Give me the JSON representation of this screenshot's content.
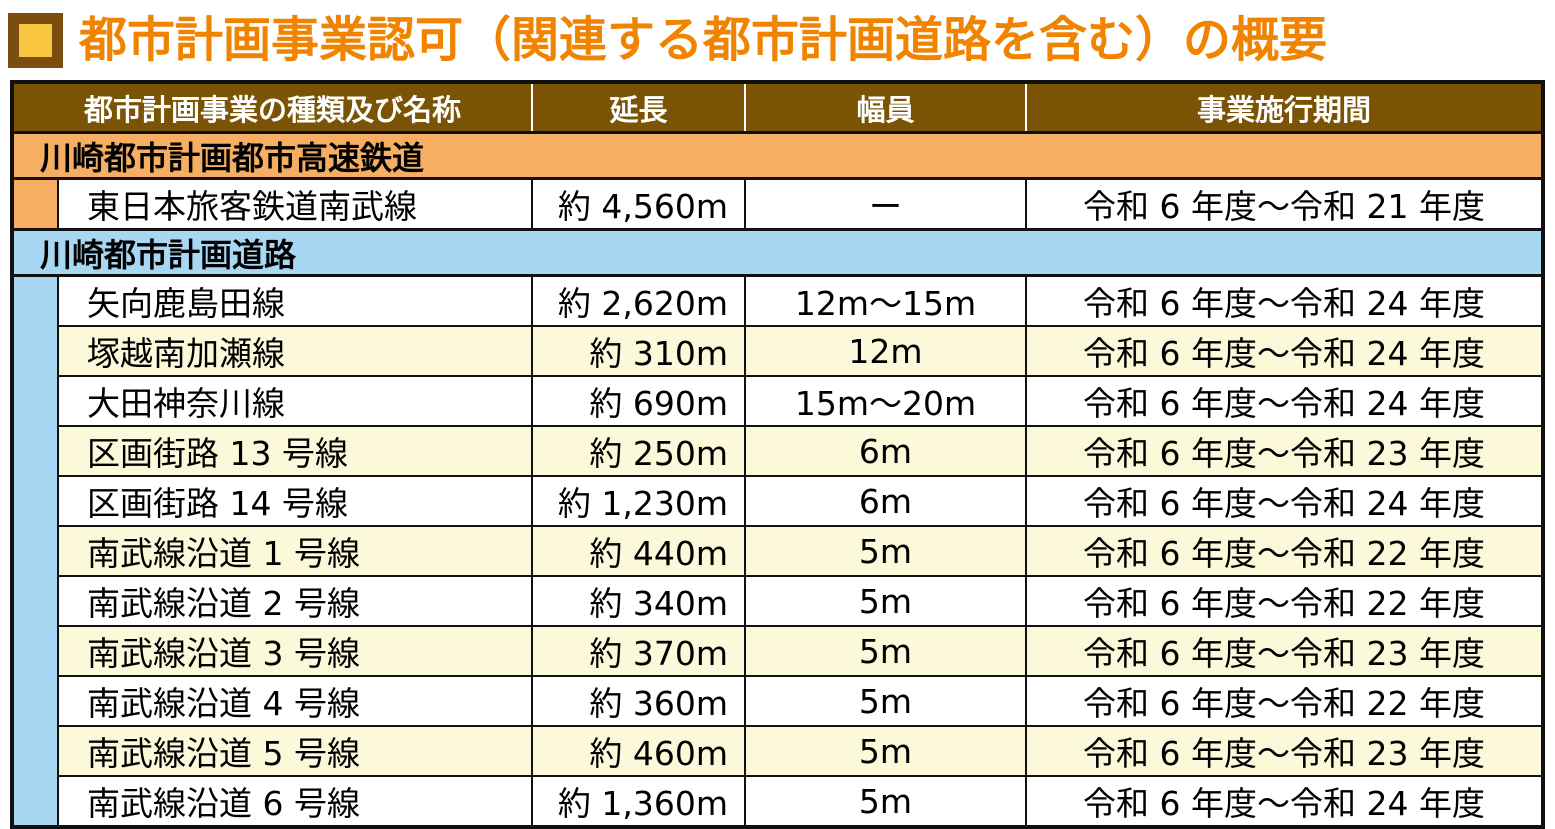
{
  "title": "都市計画事業認可（関連する都市計画道路を含む）の概要",
  "colors": {
    "title_text": "#F08300",
    "bullet_fill": "#F8C63F",
    "bullet_border": "#7B4D0E",
    "header_bg": "#7B5304",
    "header_text": "#FFFFFF",
    "rail_section_bg": "#F5AE62",
    "road_section_bg": "#A7D7F3",
    "row_alt_bg": "#FCF9DA",
    "grid_line": "#111111"
  },
  "table": {
    "columns": [
      {
        "label": "都市計画事業の種類及び名称"
      },
      {
        "label": "延長"
      },
      {
        "label": "幅員"
      },
      {
        "label": "事業施行期間"
      }
    ],
    "sections": [
      {
        "name": "川崎都市計画都市高速鉄道",
        "color": "#F5AE62",
        "rows": [
          {
            "name": "東日本旅客鉄道南武線",
            "length": "約 4,560m",
            "width": "ー",
            "period": "令和 6 年度～令和 21 年度"
          }
        ]
      },
      {
        "name": "川崎都市計画道路",
        "color": "#A7D7F3",
        "rows": [
          {
            "name": "矢向鹿島田線",
            "length": "約 2,620m",
            "width": "12m～15m",
            "period": "令和 6 年度～令和 24 年度"
          },
          {
            "name": "塚越南加瀬線",
            "length": "約 310m",
            "width": "12m",
            "period": "令和 6 年度～令和 24 年度"
          },
          {
            "name": "大田神奈川線",
            "length": "約 690m",
            "width": "15m～20m",
            "period": "令和 6 年度～令和 24 年度"
          },
          {
            "name": "区画街路 13 号線",
            "length": "約 250m",
            "width": "6m",
            "period": "令和 6 年度～令和 23 年度"
          },
          {
            "name": "区画街路 14 号線",
            "length": "約 1,230m",
            "width": "6m",
            "period": "令和 6 年度～令和 24 年度"
          },
          {
            "name": "南武線沿道 1 号線",
            "length": "約 440m",
            "width": "5m",
            "period": "令和 6 年度～令和 22 年度"
          },
          {
            "name": "南武線沿道 2 号線",
            "length": "約 340m",
            "width": "5m",
            "period": "令和 6 年度～令和 22 年度"
          },
          {
            "name": "南武線沿道 3 号線",
            "length": "約 370m",
            "width": "5m",
            "period": "令和 6 年度～令和 23 年度"
          },
          {
            "name": "南武線沿道 4 号線",
            "length": "約 360m",
            "width": "5m",
            "period": "令和 6 年度～令和 22 年度"
          },
          {
            "name": "南武線沿道 5 号線",
            "length": "約 460m",
            "width": "5m",
            "period": "令和 6 年度～令和 23 年度"
          },
          {
            "name": "南武線沿道 6 号線",
            "length": "約 1,360m",
            "width": "5m",
            "period": "令和 6 年度～令和 24 年度"
          }
        ]
      }
    ]
  }
}
